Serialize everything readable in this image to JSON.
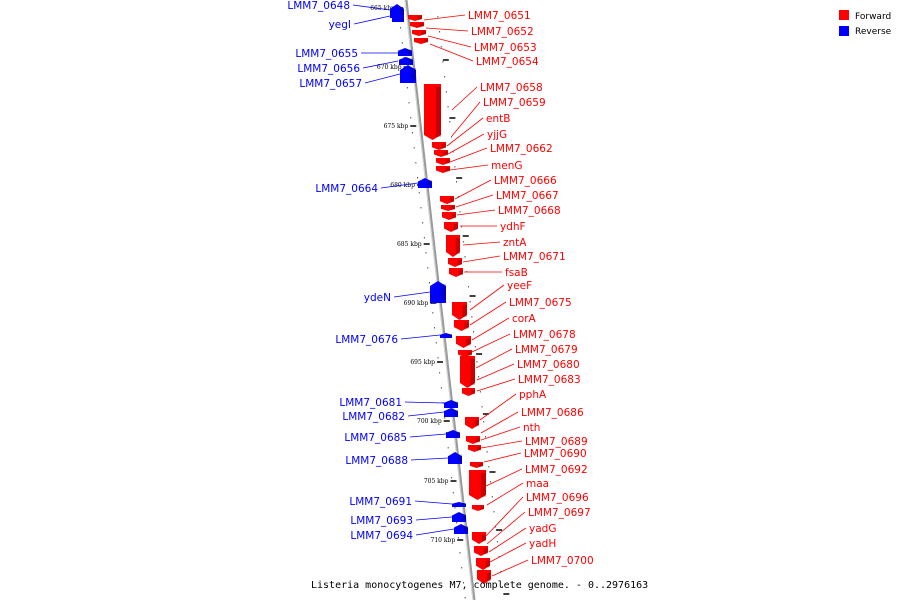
{
  "legend": {
    "forward_label": "Forward",
    "reverse_label": "Reverse",
    "forward_color": "#ff0000",
    "reverse_color": "#0000ff"
  },
  "caption": "Listeria monocytogenes M7, complete genome. - 0..2976163",
  "ticks": [
    "665 kbp",
    "670 kbp",
    "675 kbp",
    "680 kbp",
    "685 kbp",
    "690 kbp",
    "695 kbp",
    "700 kbp",
    "705 kbp",
    "710 kbp"
  ],
  "reverse_genes": [
    "LMM7_0648",
    "yegI",
    "LMM7_0655",
    "LMM7_0656",
    "LMM7_0657",
    "LMM7_0664",
    "ydeN",
    "LMM7_0676",
    "LMM7_0681",
    "LMM7_0682",
    "LMM7_0685",
    "LMM7_0688",
    "LMM7_0691",
    "LMM7_0693",
    "LMM7_0694"
  ],
  "forward_genes": [
    "LMM7_0651",
    "LMM7_0652",
    "LMM7_0653",
    "LMM7_0654",
    "LMM7_0658",
    "LMM7_0659",
    "entB",
    "yjjG",
    "LMM7_0662",
    "menG",
    "LMM7_0666",
    "LMM7_0667",
    "LMM7_0668",
    "ydhF",
    "zntA",
    "LMM7_0671",
    "fsaB",
    "yeeF",
    "LMM7_0675",
    "corA",
    "LMM7_0678",
    "LMM7_0679",
    "LMM7_0680",
    "LMM7_0683",
    "pphA",
    "LMM7_0686",
    "nth",
    "LMM7_0689",
    "LMM7_0690",
    "LMM7_0692",
    "maa",
    "LMM7_0696",
    "LMM7_0697",
    "yadG",
    "yadH",
    "LMM7_0700"
  ]
}
